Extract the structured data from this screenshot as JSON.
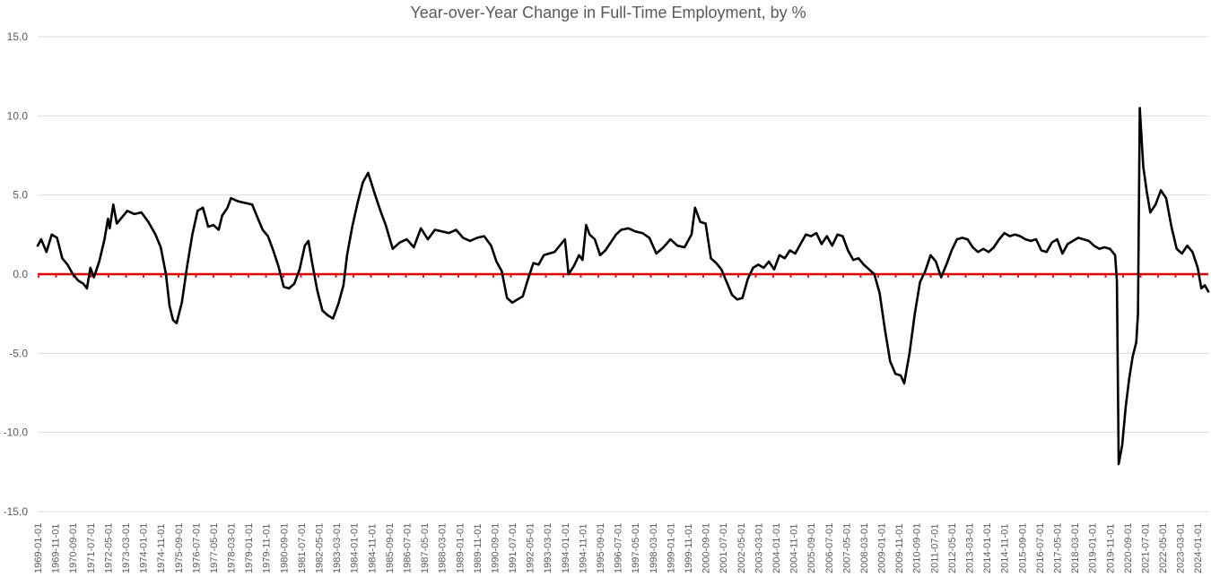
{
  "chart_data": {
    "type": "line",
    "title": "Year-over-Year Change in Full-Time Employment, by %",
    "xlabel": "",
    "ylabel": "",
    "ylim": [
      -15,
      15
    ],
    "yticks": [
      "15.0",
      "10.0",
      "5.0",
      "0.0",
      "-5.0",
      "-10.0",
      "-15.0"
    ],
    "grid": true,
    "legend": "none",
    "colors": {
      "series": "#000000",
      "reference": "#e00000",
      "grid": "#d9d9d9",
      "text": "#595959"
    },
    "x_range": [
      "1969-01-01",
      "2024-07-01"
    ],
    "xtick_labels": [
      "1969-01-01",
      "1969-11-01",
      "1970-09-01",
      "1971-07-01",
      "1972-05-01",
      "1973-03-01",
      "1974-01-01",
      "1974-11-01",
      "1975-09-01",
      "1976-07-01",
      "1977-05-01",
      "1978-03-01",
      "1979-01-01",
      "1979-11-01",
      "1980-09-01",
      "1981-07-01",
      "1982-05-01",
      "1983-03-01",
      "1984-01-01",
      "1984-11-01",
      "1985-09-01",
      "1986-07-01",
      "1987-05-01",
      "1988-03-01",
      "1989-01-01",
      "1989-11-01",
      "1990-09-01",
      "1991-07-01",
      "1992-05-01",
      "1993-03-01",
      "1994-01-01",
      "1994-11-01",
      "1995-09-01",
      "1996-07-01",
      "1997-05-01",
      "1998-03-01",
      "1999-01-01",
      "1999-11-01",
      "2000-09-01",
      "2001-07-01",
      "2002-05-01",
      "2003-03-01",
      "2004-01-01",
      "2004-11-01",
      "2005-09-01",
      "2006-07-01",
      "2007-05-01",
      "2008-03-01",
      "2009-01-01",
      "2009-11-01",
      "2010-09-01",
      "2011-07-01",
      "2012-05-01",
      "2013-03-01",
      "2014-01-01",
      "2014-11-01",
      "2015-09-01",
      "2016-07-01",
      "2017-05-01",
      "2018-03-01",
      "2019-01-01",
      "2019-11-01",
      "2020-09-01",
      "2021-07-01",
      "2022-05-01",
      "2023-03-01",
      "2024-01-01"
    ],
    "series": [
      {
        "values": [
          [
            "1969-01-01",
            1.8
          ],
          [
            "1969-03-01",
            2.2
          ],
          [
            "1969-06-01",
            1.4
          ],
          [
            "1969-09-01",
            2.5
          ],
          [
            "1969-12-01",
            2.3
          ],
          [
            "1970-03-01",
            1.0
          ],
          [
            "1970-06-01",
            0.6
          ],
          [
            "1970-09-01",
            0.0
          ],
          [
            "1970-12-01",
            -0.4
          ],
          [
            "1971-03-01",
            -0.6
          ],
          [
            "1971-05-01",
            -0.9
          ],
          [
            "1971-07-01",
            0.4
          ],
          [
            "1971-09-01",
            -0.2
          ],
          [
            "1971-12-01",
            0.8
          ],
          [
            "1972-03-01",
            2.2
          ],
          [
            "1972-05-01",
            3.5
          ],
          [
            "1972-06-01",
            2.9
          ],
          [
            "1972-08-01",
            4.4
          ],
          [
            "1972-10-01",
            3.2
          ],
          [
            "1973-01-01",
            3.6
          ],
          [
            "1973-04-01",
            4.0
          ],
          [
            "1973-08-01",
            3.8
          ],
          [
            "1973-12-01",
            3.9
          ],
          [
            "1974-04-01",
            3.3
          ],
          [
            "1974-08-01",
            2.5
          ],
          [
            "1974-11-01",
            1.7
          ],
          [
            "1975-02-01",
            0.0
          ],
          [
            "1975-04-01",
            -2.0
          ],
          [
            "1975-06-01",
            -2.9
          ],
          [
            "1975-08-01",
            -3.1
          ],
          [
            "1975-11-01",
            -1.8
          ],
          [
            "1976-02-01",
            0.5
          ],
          [
            "1976-05-01",
            2.5
          ],
          [
            "1976-08-01",
            4.0
          ],
          [
            "1976-11-01",
            4.2
          ],
          [
            "1977-02-01",
            3.0
          ],
          [
            "1977-05-01",
            3.1
          ],
          [
            "1977-08-01",
            2.8
          ],
          [
            "1977-10-01",
            3.7
          ],
          [
            "1978-01-01",
            4.2
          ],
          [
            "1978-03-01",
            4.8
          ],
          [
            "1978-07-01",
            4.6
          ],
          [
            "1978-11-01",
            4.5
          ],
          [
            "1979-03-01",
            4.4
          ],
          [
            "1979-06-01",
            3.6
          ],
          [
            "1979-09-01",
            2.8
          ],
          [
            "1979-12-01",
            2.4
          ],
          [
            "1980-03-01",
            1.5
          ],
          [
            "1980-06-01",
            0.5
          ],
          [
            "1980-09-01",
            -0.8
          ],
          [
            "1980-12-01",
            -0.9
          ],
          [
            "1981-03-01",
            -0.6
          ],
          [
            "1981-06-01",
            0.3
          ],
          [
            "1981-09-01",
            1.8
          ],
          [
            "1981-11-01",
            2.1
          ],
          [
            "1982-01-01",
            0.8
          ],
          [
            "1982-04-01",
            -1.0
          ],
          [
            "1982-07-01",
            -2.3
          ],
          [
            "1982-10-01",
            -2.6
          ],
          [
            "1983-01-01",
            -2.8
          ],
          [
            "1983-04-01",
            -1.9
          ],
          [
            "1983-07-01",
            -0.7
          ],
          [
            "1983-09-01",
            1.2
          ],
          [
            "1983-12-01",
            3.0
          ],
          [
            "1984-03-01",
            4.5
          ],
          [
            "1984-06-01",
            5.8
          ],
          [
            "1984-09-01",
            6.4
          ],
          [
            "1985-01-01",
            5.0
          ],
          [
            "1985-04-01",
            4.0
          ],
          [
            "1985-07-01",
            3.1
          ],
          [
            "1985-11-01",
            1.6
          ],
          [
            "1986-03-01",
            2.0
          ],
          [
            "1986-07-01",
            2.2
          ],
          [
            "1986-11-01",
            1.7
          ],
          [
            "1987-03-01",
            2.9
          ],
          [
            "1987-07-01",
            2.2
          ],
          [
            "1987-11-01",
            2.8
          ],
          [
            "1988-03-01",
            2.7
          ],
          [
            "1988-07-01",
            2.6
          ],
          [
            "1988-11-01",
            2.8
          ],
          [
            "1989-03-01",
            2.3
          ],
          [
            "1989-07-01",
            2.1
          ],
          [
            "1989-11-01",
            2.3
          ],
          [
            "1990-03-01",
            2.4
          ],
          [
            "1990-07-01",
            1.8
          ],
          [
            "1990-10-01",
            0.8
          ],
          [
            "1991-01-01",
            0.2
          ],
          [
            "1991-04-01",
            -1.5
          ],
          [
            "1991-07-01",
            -1.8
          ],
          [
            "1991-10-01",
            -1.6
          ],
          [
            "1992-01-01",
            -1.4
          ],
          [
            "1992-04-01",
            -0.3
          ],
          [
            "1992-07-01",
            0.7
          ],
          [
            "1992-10-01",
            0.6
          ],
          [
            "1993-01-01",
            1.2
          ],
          [
            "1993-04-01",
            1.3
          ],
          [
            "1993-07-01",
            1.4
          ],
          [
            "1993-10-01",
            1.8
          ],
          [
            "1994-01-01",
            2.2
          ],
          [
            "1994-03-01",
            0.0
          ],
          [
            "1994-06-01",
            0.5
          ],
          [
            "1994-09-01",
            1.2
          ],
          [
            "1994-11-01",
            0.9
          ],
          [
            "1995-01-01",
            3.1
          ],
          [
            "1995-03-01",
            2.5
          ],
          [
            "1995-06-01",
            2.2
          ],
          [
            "1995-09-01",
            1.2
          ],
          [
            "1995-12-01",
            1.5
          ],
          [
            "1996-03-01",
            2.0
          ],
          [
            "1996-06-01",
            2.5
          ],
          [
            "1996-09-01",
            2.8
          ],
          [
            "1997-01-01",
            2.9
          ],
          [
            "1997-05-01",
            2.7
          ],
          [
            "1997-09-01",
            2.6
          ],
          [
            "1998-01-01",
            2.3
          ],
          [
            "1998-05-01",
            1.3
          ],
          [
            "1998-09-01",
            1.7
          ],
          [
            "1999-01-01",
            2.2
          ],
          [
            "1999-05-01",
            1.8
          ],
          [
            "1999-09-01",
            1.7
          ],
          [
            "2000-01-01",
            2.5
          ],
          [
            "2000-03-01",
            4.2
          ],
          [
            "2000-06-01",
            3.3
          ],
          [
            "2000-09-01",
            3.2
          ],
          [
            "2000-12-01",
            1.0
          ],
          [
            "2001-03-01",
            0.7
          ],
          [
            "2001-06-01",
            0.3
          ],
          [
            "2001-09-01",
            -0.5
          ],
          [
            "2001-12-01",
            -1.3
          ],
          [
            "2002-03-01",
            -1.6
          ],
          [
            "2002-06-01",
            -1.5
          ],
          [
            "2002-09-01",
            -0.3
          ],
          [
            "2002-12-01",
            0.4
          ],
          [
            "2003-03-01",
            0.6
          ],
          [
            "2003-06-01",
            0.4
          ],
          [
            "2003-09-01",
            0.8
          ],
          [
            "2003-12-01",
            0.3
          ],
          [
            "2004-03-01",
            1.2
          ],
          [
            "2004-06-01",
            1.0
          ],
          [
            "2004-09-01",
            1.5
          ],
          [
            "2004-12-01",
            1.3
          ],
          [
            "2005-03-01",
            1.9
          ],
          [
            "2005-06-01",
            2.5
          ],
          [
            "2005-09-01",
            2.4
          ],
          [
            "2005-12-01",
            2.6
          ],
          [
            "2006-03-01",
            1.9
          ],
          [
            "2006-06-01",
            2.4
          ],
          [
            "2006-09-01",
            1.8
          ],
          [
            "2006-12-01",
            2.5
          ],
          [
            "2007-03-01",
            2.4
          ],
          [
            "2007-06-01",
            1.5
          ],
          [
            "2007-09-01",
            0.9
          ],
          [
            "2007-12-01",
            1.0
          ],
          [
            "2008-03-01",
            0.6
          ],
          [
            "2008-06-01",
            0.3
          ],
          [
            "2008-09-01",
            0.0
          ],
          [
            "2008-12-01",
            -1.2
          ],
          [
            "2009-03-01",
            -3.5
          ],
          [
            "2009-06-01",
            -5.5
          ],
          [
            "2009-09-01",
            -6.3
          ],
          [
            "2009-12-01",
            -6.4
          ],
          [
            "2010-02-01",
            -6.9
          ],
          [
            "2010-05-01",
            -5.0
          ],
          [
            "2010-08-01",
            -2.5
          ],
          [
            "2010-11-01",
            -0.5
          ],
          [
            "2011-02-01",
            0.2
          ],
          [
            "2011-05-01",
            1.2
          ],
          [
            "2011-08-01",
            0.8
          ],
          [
            "2011-11-01",
            -0.2
          ],
          [
            "2012-02-01",
            0.6
          ],
          [
            "2012-05-01",
            1.5
          ],
          [
            "2012-08-01",
            2.2
          ],
          [
            "2012-11-01",
            2.3
          ],
          [
            "2013-02-01",
            2.2
          ],
          [
            "2013-05-01",
            1.7
          ],
          [
            "2013-08-01",
            1.4
          ],
          [
            "2013-11-01",
            1.6
          ],
          [
            "2014-02-01",
            1.4
          ],
          [
            "2014-05-01",
            1.7
          ],
          [
            "2014-08-01",
            2.2
          ],
          [
            "2014-11-01",
            2.6
          ],
          [
            "2015-02-01",
            2.4
          ],
          [
            "2015-05-01",
            2.5
          ],
          [
            "2015-08-01",
            2.4
          ],
          [
            "2015-11-01",
            2.2
          ],
          [
            "2016-02-01",
            2.1
          ],
          [
            "2016-05-01",
            2.2
          ],
          [
            "2016-08-01",
            1.5
          ],
          [
            "2016-11-01",
            1.4
          ],
          [
            "2017-02-01",
            2.0
          ],
          [
            "2017-05-01",
            2.2
          ],
          [
            "2017-08-01",
            1.3
          ],
          [
            "2017-11-01",
            1.9
          ],
          [
            "2018-02-01",
            2.1
          ],
          [
            "2018-05-01",
            2.3
          ],
          [
            "2018-08-01",
            2.2
          ],
          [
            "2018-11-01",
            2.1
          ],
          [
            "2019-02-01",
            1.8
          ],
          [
            "2019-05-01",
            1.6
          ],
          [
            "2019-08-01",
            1.7
          ],
          [
            "2019-11-01",
            1.6
          ],
          [
            "2020-02-01",
            1.2
          ],
          [
            "2020-03-01",
            -0.4
          ],
          [
            "2020-04-01",
            -12.0
          ],
          [
            "2020-06-01",
            -10.8
          ],
          [
            "2020-08-01",
            -8.4
          ],
          [
            "2020-10-01",
            -6.6
          ],
          [
            "2020-12-01",
            -5.2
          ],
          [
            "2021-02-01",
            -4.3
          ],
          [
            "2021-03-01",
            -2.5
          ],
          [
            "2021-04-01",
            10.5
          ],
          [
            "2021-06-01",
            6.8
          ],
          [
            "2021-08-01",
            5.2
          ],
          [
            "2021-10-01",
            3.9
          ],
          [
            "2022-01-01",
            4.4
          ],
          [
            "2022-04-01",
            5.3
          ],
          [
            "2022-07-01",
            4.8
          ],
          [
            "2022-10-01",
            3.0
          ],
          [
            "2023-01-01",
            1.6
          ],
          [
            "2023-04-01",
            1.3
          ],
          [
            "2023-07-01",
            1.8
          ],
          [
            "2023-10-01",
            1.4
          ],
          [
            "2024-01-01",
            0.4
          ],
          [
            "2024-03-01",
            -0.9
          ],
          [
            "2024-05-01",
            -0.7
          ],
          [
            "2024-07-01",
            -1.1
          ]
        ]
      }
    ]
  }
}
